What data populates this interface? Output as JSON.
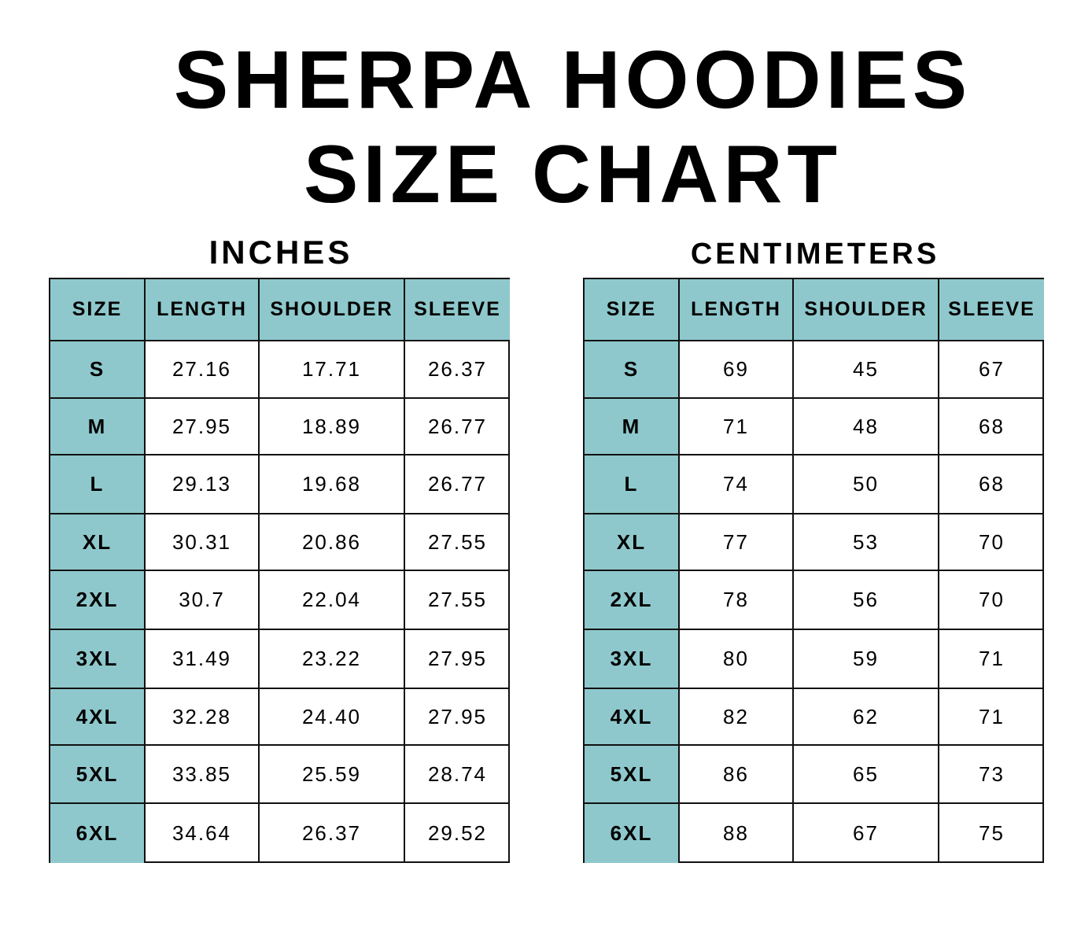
{
  "title_line1": "SHERPA HOODIES",
  "title_line2": "SIZE CHART",
  "colors": {
    "header_fill": "#8ec8cc",
    "border": "#111111"
  },
  "chart_data": {
    "type": "table",
    "title": "SHERPA HOODIES SIZE CHART",
    "tables": [
      {
        "unit": "INCHES",
        "columns": [
          "SIZE",
          "LENGTH",
          "SHOULDER",
          "SLEEVE"
        ],
        "rows": [
          [
            "S",
            "27.16",
            "17.71",
            "26.37"
          ],
          [
            "M",
            "27.95",
            "18.89",
            "26.77"
          ],
          [
            "L",
            "29.13",
            "19.68",
            "26.77"
          ],
          [
            "XL",
            "30.31",
            "20.86",
            "27.55"
          ],
          [
            "2XL",
            "30.7",
            "22.04",
            "27.55"
          ],
          [
            "3XL",
            "31.49",
            "23.22",
            "27.95"
          ],
          [
            "4XL",
            "32.28",
            "24.40",
            "27.95"
          ],
          [
            "5XL",
            "33.85",
            "25.59",
            "28.74"
          ],
          [
            "6XL",
            "34.64",
            "26.37",
            "29.52"
          ]
        ]
      },
      {
        "unit": "CENTIMETERS",
        "columns": [
          "SIZE",
          "LENGTH",
          "SHOULDER",
          "SLEEVE"
        ],
        "rows": [
          [
            "S",
            "69",
            "45",
            "67"
          ],
          [
            "M",
            "71",
            "48",
            "68"
          ],
          [
            "L",
            "74",
            "50",
            "68"
          ],
          [
            "XL",
            "77",
            "53",
            "70"
          ],
          [
            "2XL",
            "78",
            "56",
            "70"
          ],
          [
            "3XL",
            "80",
            "59",
            "71"
          ],
          [
            "4XL",
            "82",
            "62",
            "71"
          ],
          [
            "5XL",
            "86",
            "65",
            "73"
          ],
          [
            "6XL",
            "88",
            "67",
            "75"
          ]
        ]
      }
    ]
  }
}
